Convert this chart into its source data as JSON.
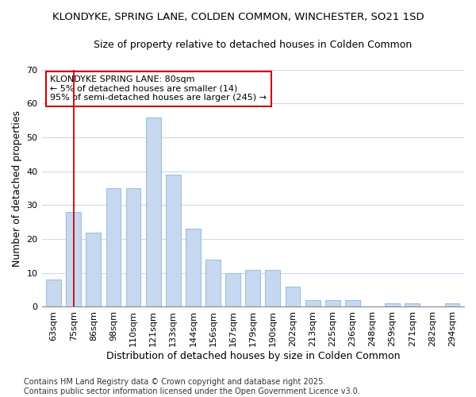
{
  "title1": "KLONDYKE, SPRING LANE, COLDEN COMMON, WINCHESTER, SO21 1SD",
  "title2": "Size of property relative to detached houses in Colden Common",
  "xlabel": "Distribution of detached houses by size in Colden Common",
  "ylabel": "Number of detached properties",
  "categories": [
    "63sqm",
    "75sqm",
    "86sqm",
    "98sqm",
    "110sqm",
    "121sqm",
    "133sqm",
    "144sqm",
    "156sqm",
    "167sqm",
    "179sqm",
    "190sqm",
    "202sqm",
    "213sqm",
    "225sqm",
    "236sqm",
    "248sqm",
    "259sqm",
    "271sqm",
    "282sqm",
    "294sqm"
  ],
  "values": [
    8,
    28,
    22,
    35,
    35,
    56,
    39,
    23,
    14,
    10,
    11,
    11,
    6,
    2,
    2,
    2,
    0,
    1,
    1,
    0,
    1
  ],
  "bar_color": "#c5d8f0",
  "bar_edge_color": "#a0bfe0",
  "bg_color": "#ffffff",
  "plot_bg_color": "#ffffff",
  "grid_color": "#ccdaee",
  "vline_x_idx": 1,
  "vline_color": "#cc0000",
  "annotation_title": "KLONDYKE SPRING LANE: 80sqm",
  "annotation_line1": "← 5% of detached houses are smaller (14)",
  "annotation_line2": "95% of semi-detached houses are larger (245) →",
  "annotation_box_color": "#ffffff",
  "annotation_box_edge": "#cc0000",
  "ylim": [
    0,
    70
  ],
  "yticks": [
    0,
    10,
    20,
    30,
    40,
    50,
    60,
    70
  ],
  "footer1": "Contains HM Land Registry data © Crown copyright and database right 2025.",
  "footer2": "Contains public sector information licensed under the Open Government Licence v3.0.",
  "title1_fontsize": 9.5,
  "title2_fontsize": 9,
  "xlabel_fontsize": 9,
  "ylabel_fontsize": 9,
  "tick_fontsize": 8,
  "footer_fontsize": 7,
  "ann_fontsize": 8
}
